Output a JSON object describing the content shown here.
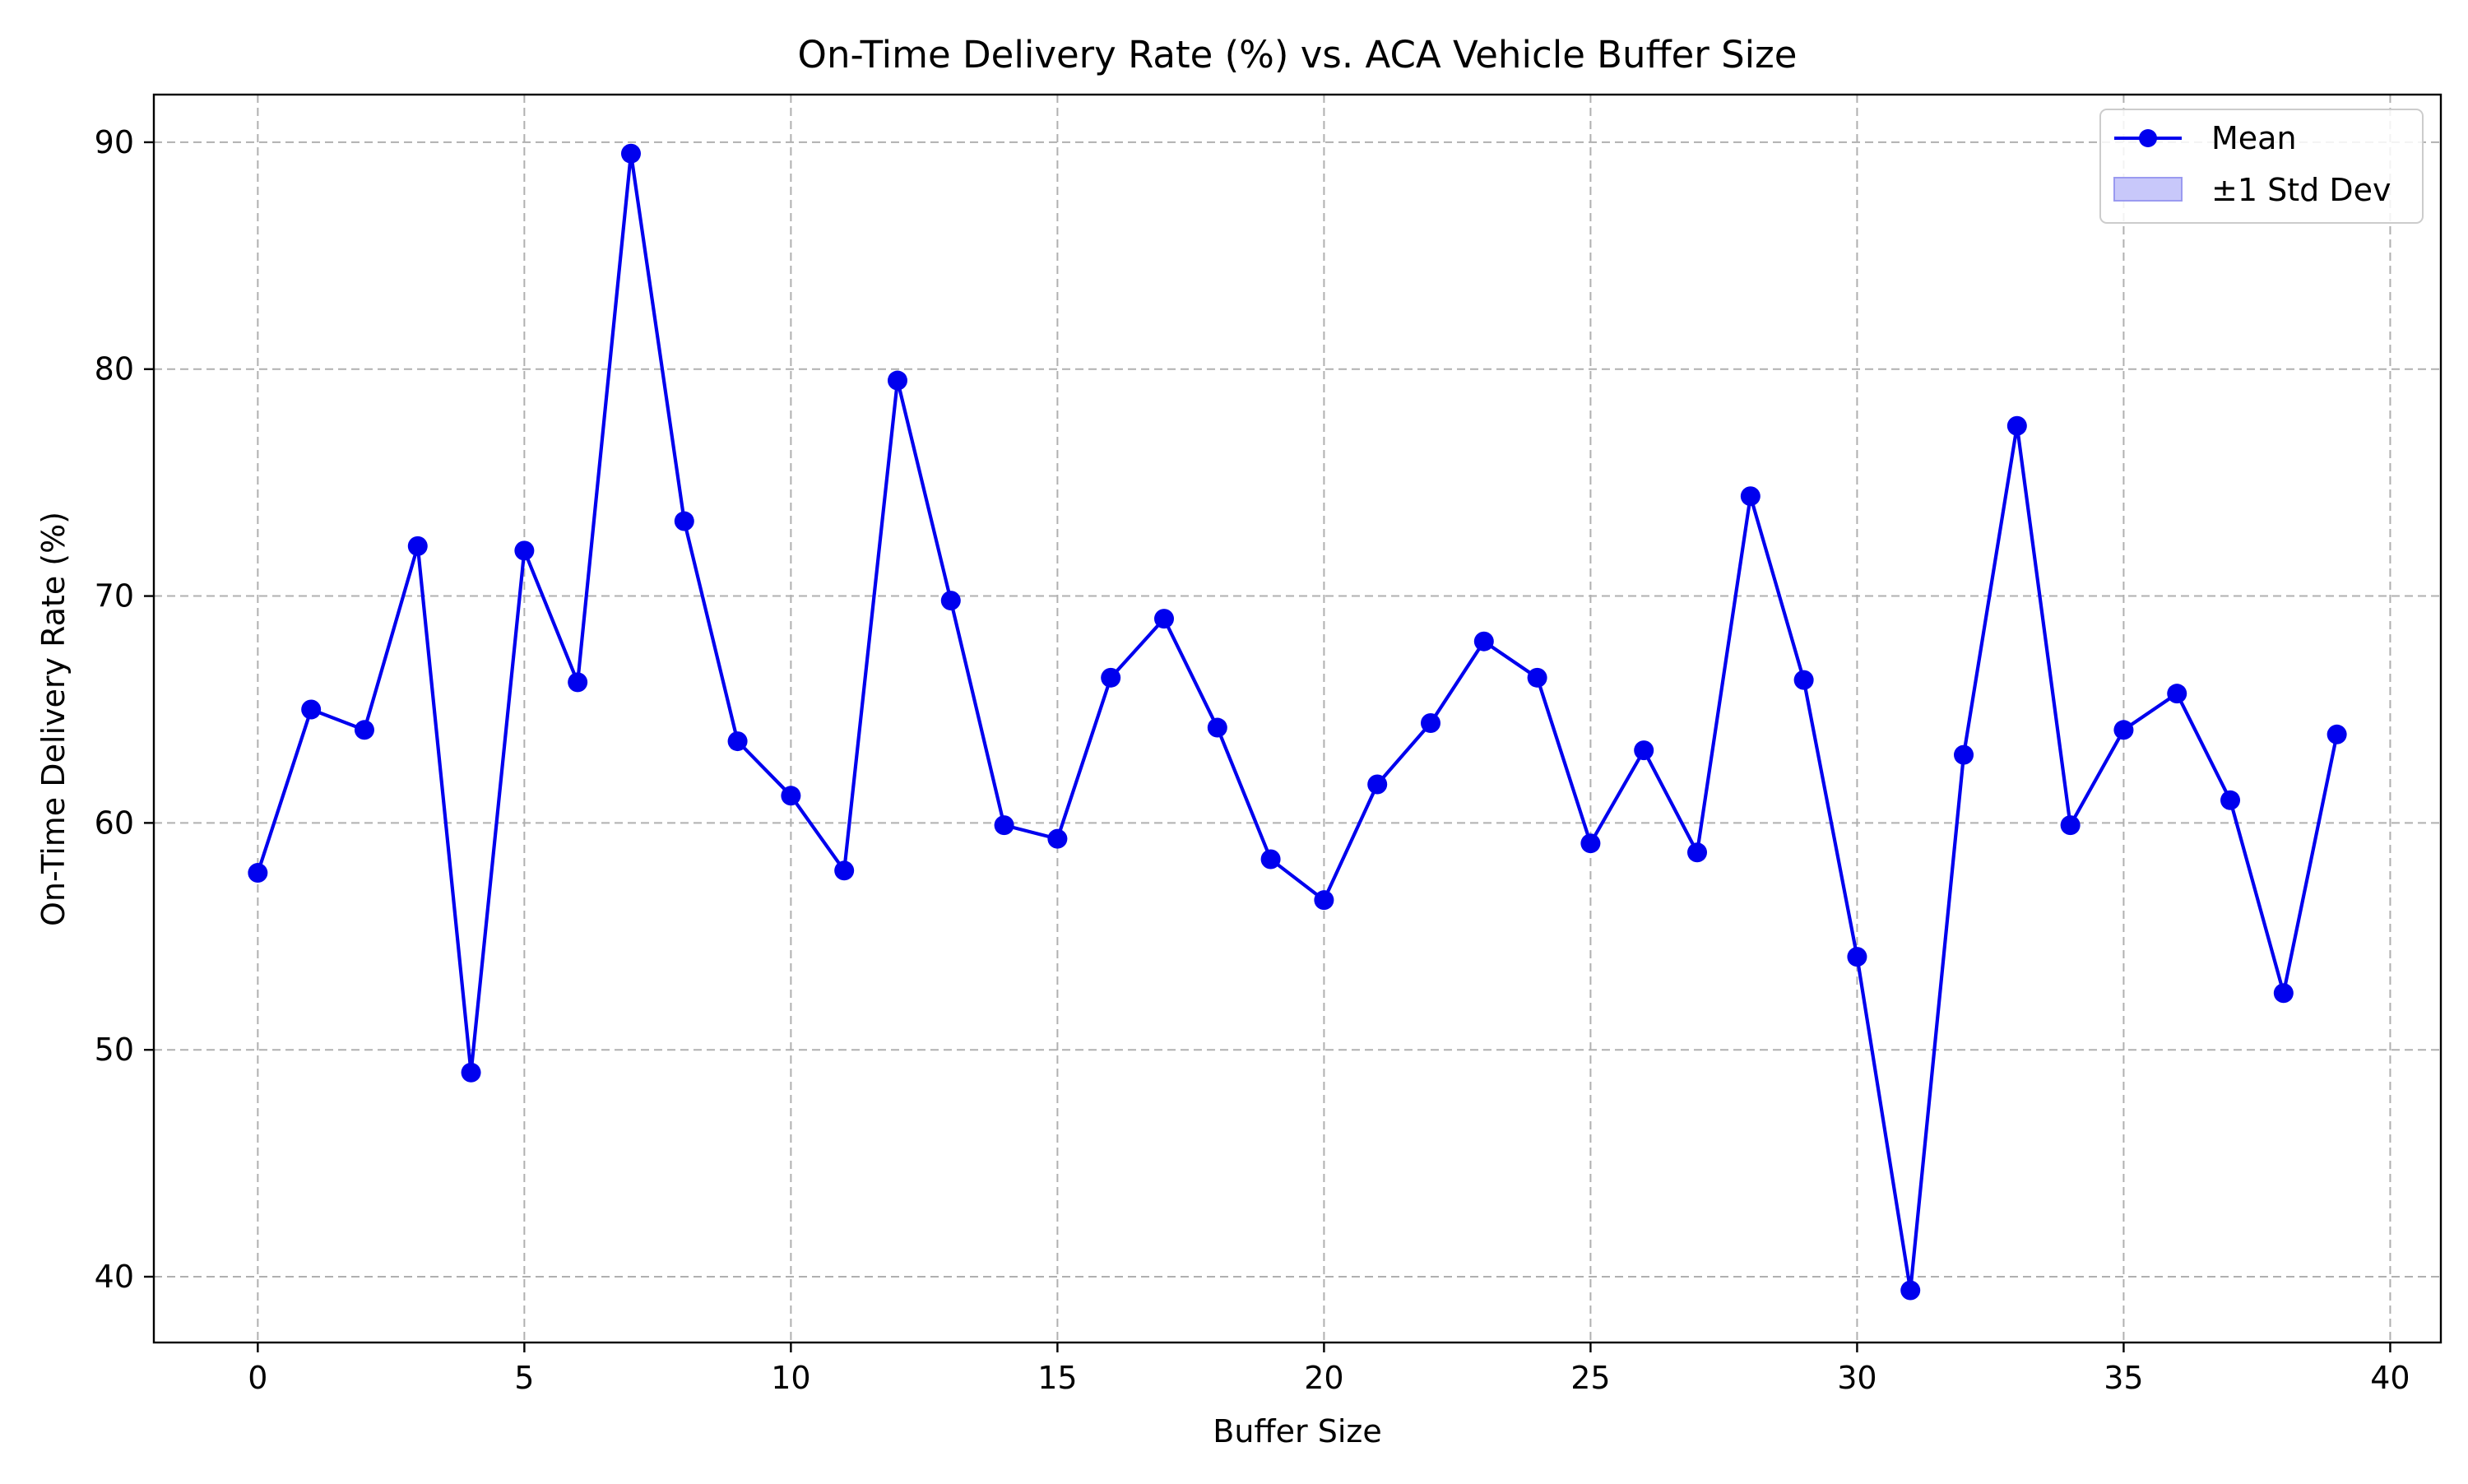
{
  "colors": {
    "line": "#0000ee",
    "marker": "#0000ee",
    "band_fill": "#c8c8fa",
    "band_edge": "#9a9af0",
    "grid": "#b0b0b0",
    "axes": "#000000"
  },
  "legend": {
    "placement": "upper-right",
    "items": [
      {
        "label": "Mean",
        "kind": "line-marker"
      },
      {
        "label": "±1 Std Dev",
        "kind": "patch"
      }
    ]
  },
  "chart_data": {
    "type": "line",
    "title": "On-Time Delivery Rate (%) vs. ACA Vehicle Buffer Size",
    "xlabel": "Buffer Size",
    "ylabel": "On-Time Delivery Rate (%)",
    "xlim": [
      -1.95,
      40.95
    ],
    "ylim": [
      37.1,
      92.1
    ],
    "xticks": [
      0,
      5,
      10,
      15,
      20,
      25,
      30,
      35,
      40
    ],
    "xtick_labels": [
      "0",
      "5",
      "10",
      "15",
      "20",
      "25",
      "30",
      "35",
      "40"
    ],
    "yticks": [
      40,
      50,
      60,
      70,
      80,
      90
    ],
    "ytick_labels": [
      "40",
      "50",
      "60",
      "70",
      "80",
      "90"
    ],
    "grid": true,
    "grid_style": "dashed",
    "x": [
      0,
      1,
      2,
      3,
      4,
      5,
      6,
      7,
      8,
      9,
      10,
      11,
      12,
      13,
      14,
      15,
      16,
      17,
      18,
      19,
      20,
      21,
      22,
      23,
      24,
      25,
      26,
      27,
      28,
      29,
      30,
      31,
      32,
      33,
      34,
      35,
      36,
      37,
      38,
      39
    ],
    "series": [
      {
        "name": "Mean",
        "marker": "circle",
        "values": [
          57.8,
          65.0,
          64.1,
          72.2,
          49.0,
          72.0,
          66.2,
          89.5,
          73.3,
          63.6,
          61.2,
          57.9,
          79.5,
          69.8,
          59.9,
          59.3,
          66.4,
          69.0,
          64.2,
          58.4,
          56.6,
          61.7,
          64.4,
          68.0,
          66.4,
          59.1,
          63.2,
          58.7,
          74.4,
          66.3,
          54.1,
          39.4,
          63.0,
          77.5,
          59.9,
          64.1,
          65.7,
          61.0,
          52.5,
          63.9
        ]
      }
    ]
  }
}
